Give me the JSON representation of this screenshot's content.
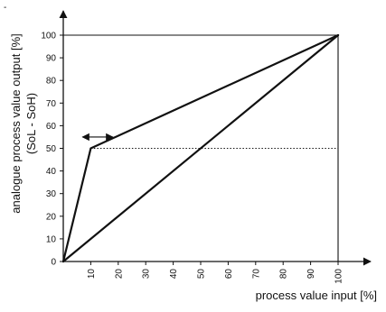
{
  "corner_mark": "-",
  "chart_data": {
    "type": "line",
    "xlabel": "process value input [%]",
    "ylabel_lines": [
      "analogue process value output [%]",
      "(SoL - SoH)"
    ],
    "x_ticks": [
      "10",
      "20",
      "30",
      "40",
      "50",
      "60",
      "70",
      "80",
      "90",
      "100"
    ],
    "y_ticks": [
      "0",
      "10",
      "20",
      "30",
      "40",
      "50",
      "60",
      "70",
      "80",
      "90",
      "100"
    ],
    "xlim": [
      0,
      100
    ],
    "ylim": [
      0,
      100
    ],
    "grid": false,
    "series": [
      {
        "style": "solid",
        "color": "#111111",
        "points": [
          [
            0,
            0
          ],
          [
            100,
            100
          ]
        ]
      },
      {
        "style": "solid",
        "color": "#111111",
        "points": [
          [
            0,
            0
          ],
          [
            10,
            50
          ],
          [
            100,
            100
          ]
        ]
      }
    ],
    "guide_lines": [
      {
        "style": "dotted",
        "points": [
          [
            10,
            50
          ],
          [
            100,
            50
          ]
        ]
      },
      {
        "style": "solid",
        "points": [
          [
            0,
            100
          ],
          [
            100,
            100
          ]
        ]
      },
      {
        "style": "solid",
        "points": [
          [
            100,
            0
          ],
          [
            100,
            100
          ]
        ]
      }
    ],
    "annotations": [
      {
        "type": "double-arrow",
        "from": [
          7,
          55
        ],
        "to": [
          18,
          55
        ]
      }
    ]
  }
}
